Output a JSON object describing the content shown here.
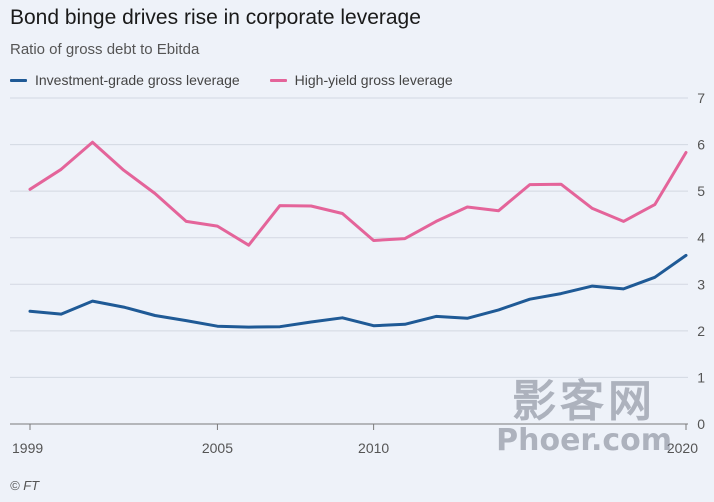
{
  "title": "Bond binge drives rise in corporate leverage",
  "subtitle": "Ratio of gross debt to Ebitda",
  "source": "© FT",
  "watermark": {
    "line1": "影客网",
    "line2": "Phoer.com"
  },
  "colors": {
    "ig": "#1f5a96",
    "hy": "#e4649a",
    "grid": "#d3d8e2",
    "axis": "#555555"
  },
  "chart_data": {
    "type": "line",
    "title": "Bond binge drives rise in corporate leverage",
    "ylabel": "Ratio of gross debt to Ebitda",
    "xlabel": "",
    "xlim": [
      1999,
      2020
    ],
    "ylim": [
      0,
      7
    ],
    "yticks": [
      0,
      1,
      2,
      3,
      4,
      5,
      6,
      7
    ],
    "xticks": [
      1999,
      2005,
      2010,
      2020
    ],
    "xtick_labels": [
      "1999",
      "2005",
      "2010",
      "2020"
    ],
    "legend": "top-left",
    "x": [
      1999,
      2000,
      2001,
      2002,
      2003,
      2004,
      2005,
      2006,
      2007,
      2008,
      2009,
      2010,
      2011,
      2012,
      2013,
      2014,
      2015,
      2016,
      2017,
      2018,
      2019,
      2020
    ],
    "series": [
      {
        "key": "ig",
        "name": "Investment-grade gross leverage",
        "values": [
          2.42,
          2.36,
          2.64,
          2.51,
          2.33,
          2.22,
          2.1,
          2.08,
          2.09,
          2.19,
          2.28,
          2.11,
          2.14,
          2.31,
          2.27,
          2.45,
          2.68,
          2.8,
          2.96,
          2.9,
          3.15,
          3.62
        ]
      },
      {
        "key": "hy",
        "name": "High-yield gross leverage",
        "values": [
          5.04,
          5.47,
          6.05,
          5.45,
          4.95,
          4.35,
          4.25,
          3.84,
          4.69,
          4.68,
          4.52,
          3.94,
          3.98,
          4.35,
          4.66,
          4.58,
          5.14,
          5.15,
          4.63,
          4.35,
          4.71,
          5.83
        ]
      }
    ]
  }
}
